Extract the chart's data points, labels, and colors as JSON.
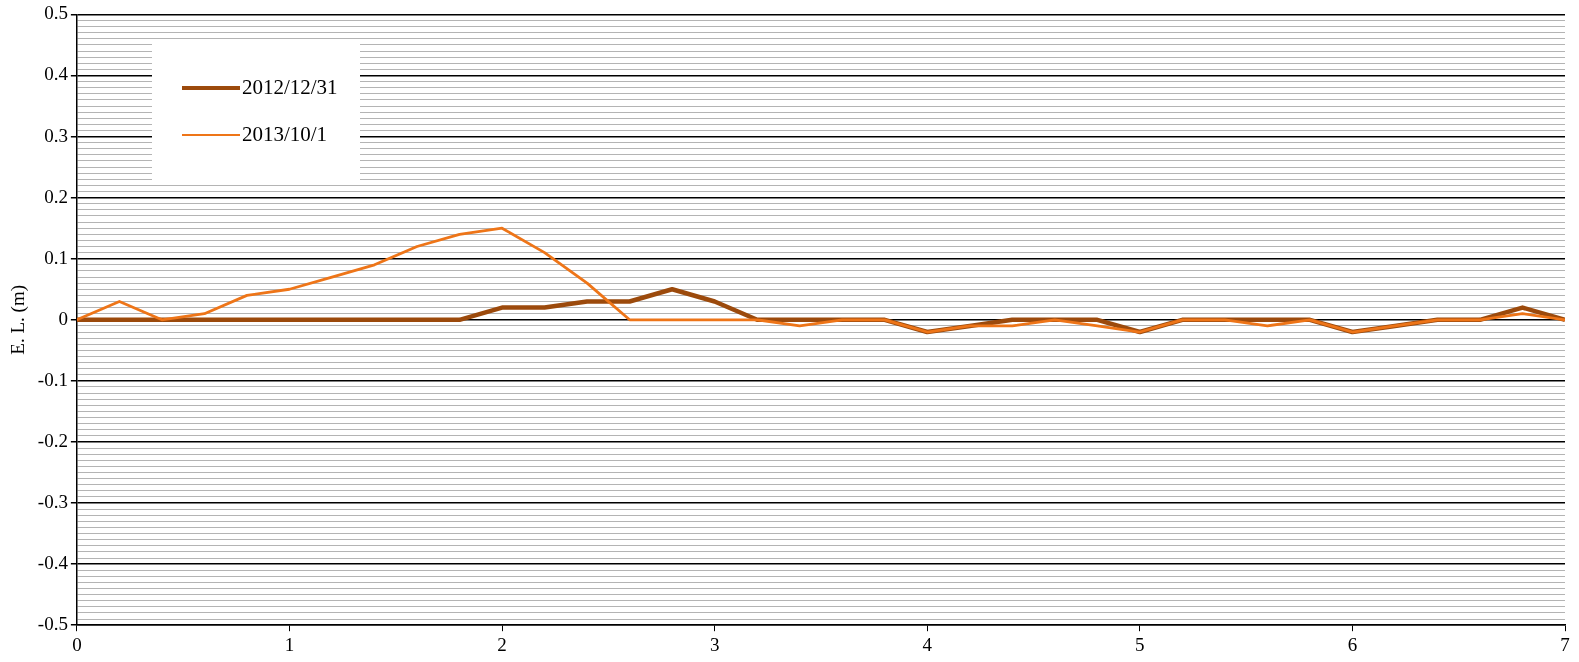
{
  "chart_data": {
    "type": "line",
    "ylabel": "E. L. (m)",
    "x": [
      0,
      0.2,
      0.4,
      0.6,
      0.8,
      1,
      1.2,
      1.4,
      1.6,
      1.8,
      2,
      2.2,
      2.4,
      2.6,
      2.8,
      3,
      3.2,
      3.4,
      3.6,
      3.8,
      4,
      4.2,
      4.4,
      4.6,
      4.8,
      5,
      5.2,
      5.4,
      5.6,
      5.8,
      6,
      6.2,
      6.4,
      6.6,
      6.8,
      7
    ],
    "series": [
      {
        "name": "2012/12/31",
        "color": "#9c4a0c",
        "values": [
          0,
          0,
          0,
          0,
          0,
          0,
          0,
          0,
          0,
          0,
          0.02,
          0.02,
          0.03,
          0.03,
          0.05,
          0.03,
          0,
          0,
          0,
          0,
          -0.02,
          -0.01,
          0,
          0,
          0,
          -0.02,
          0,
          0,
          0,
          0,
          -0.02,
          -0.01,
          0,
          0,
          0.02,
          0
        ]
      },
      {
        "name": "2013/10/1",
        "color": "#ee7518",
        "values": [
          0,
          0.03,
          0,
          0.01,
          0.04,
          0.05,
          0.07,
          0.09,
          0.12,
          0.14,
          0.15,
          0.11,
          0.06,
          0,
          0,
          0,
          0,
          -0.01,
          0,
          0,
          -0.02,
          -0.01,
          -0.01,
          0,
          -0.01,
          -0.02,
          0,
          0,
          -0.01,
          0,
          -0.02,
          -0.01,
          0,
          0,
          0.01,
          0
        ]
      }
    ],
    "xlim": [
      0,
      7
    ],
    "xticks": [
      0,
      1,
      2,
      3,
      4,
      5,
      6,
      7
    ],
    "ylim": [
      -0.5,
      0.5
    ],
    "yticks": [
      -0.5,
      {
        "value": -0.49,
        "label": null
      },
      {
        "value": -0.48,
        "label": null
      },
      {
        "value": -0.47,
        "label": null
      },
      {
        "value": -0.46,
        "label": null
      },
      {
        "value": -0.45,
        "label": null
      },
      {
        "value": -0.44,
        "label": null
      },
      {
        "value": -0.43,
        "label": null
      },
      {
        "value": -0.42,
        "label": null
      },
      {
        "value": -0.41,
        "label": null
      },
      -0.4,
      {
        "value": -0.39,
        "label": null
      },
      {
        "value": -0.38,
        "label": null
      },
      {
        "value": -0.37,
        "label": null
      },
      {
        "value": -0.36,
        "label": null
      },
      {
        "value": -0.35,
        "label": null
      },
      {
        "value": -0.34,
        "label": null
      },
      {
        "value": -0.33,
        "label": null
      },
      {
        "value": -0.32,
        "label": null
      },
      {
        "value": -0.31,
        "label": null
      },
      -0.3,
      {
        "value": -0.29,
        "label": null
      },
      {
        "value": -0.28,
        "label": null
      },
      {
        "value": -0.27,
        "label": null
      },
      {
        "value": -0.26,
        "label": null
      },
      {
        "value": -0.25,
        "label": null
      },
      {
        "value": -0.24,
        "label": null
      },
      {
        "value": -0.23,
        "label": null
      },
      {
        "value": -0.22,
        "label": null
      },
      {
        "value": -0.21,
        "label": null
      },
      -0.2,
      {
        "value": -0.19,
        "label": null
      },
      {
        "value": -0.18,
        "label": null
      },
      {
        "value": -0.17,
        "label": null
      },
      {
        "value": -0.16,
        "label": null
      },
      {
        "value": -0.15,
        "label": null
      },
      {
        "value": -0.14,
        "label": null
      },
      {
        "value": -0.13,
        "label": null
      },
      {
        "value": -0.12,
        "label": null
      },
      {
        "value": -0.11,
        "label": null
      },
      -0.1,
      {
        "value": -0.09,
        "label": null
      },
      {
        "value": -0.08,
        "label": null
      },
      {
        "value": -0.07,
        "label": null
      },
      {
        "value": -0.06,
        "label": null
      },
      {
        "value": -0.05,
        "label": null
      },
      {
        "value": -0.04,
        "label": null
      },
      {
        "value": -0.03,
        "label": null
      },
      {
        "value": -0.02,
        "label": null
      },
      {
        "value": -0.01,
        "label": null
      },
      0,
      {
        "value": 0.01,
        "label": null
      },
      {
        "value": 0.02,
        "label": null
      },
      {
        "value": 0.03,
        "label": null
      },
      {
        "value": 0.04,
        "label": null
      },
      {
        "value": 0.05,
        "label": null
      },
      {
        "value": 0.06,
        "label": null
      },
      {
        "value": 0.07,
        "label": null
      },
      {
        "value": 0.08,
        "label": null
      },
      {
        "value": 0.09,
        "label": null
      },
      0.1,
      {
        "value": 0.11,
        "label": null
      },
      {
        "value": 0.12,
        "label": null
      },
      {
        "value": 0.13,
        "label": null
      },
      {
        "value": 0.14,
        "label": null
      },
      {
        "value": 0.15,
        "label": null
      },
      {
        "value": 0.16,
        "label": null
      },
      {
        "value": 0.17,
        "label": null
      },
      {
        "value": 0.18,
        "label": null
      },
      {
        "value": 0.19,
        "label": null
      },
      0.2,
      {
        "value": 0.21,
        "label": null
      },
      {
        "value": 0.22,
        "label": null
      },
      {
        "value": 0.23,
        "label": null
      },
      {
        "value": 0.24,
        "label": null
      },
      {
        "value": 0.25,
        "label": null
      },
      {
        "value": 0.26,
        "label": null
      },
      {
        "value": 0.27,
        "label": null
      },
      {
        "value": 0.28,
        "label": null
      },
      {
        "value": 0.29,
        "label": null
      },
      0.3,
      {
        "value": 0.31,
        "label": null
      },
      {
        "value": 0.32,
        "label": null
      },
      {
        "value": 0.33,
        "label": null
      },
      {
        "value": 0.34,
        "label": null
      },
      {
        "value": 0.35,
        "label": null
      },
      {
        "value": 0.36,
        "label": null
      },
      {
        "value": 0.37,
        "label": null
      },
      {
        "value": 0.38,
        "label": null
      },
      {
        "value": 0.39,
        "label": null
      },
      0.4,
      {
        "value": 0.41,
        "label": null
      },
      {
        "value": 0.42,
        "label": null
      },
      {
        "value": 0.43,
        "label": null
      },
      {
        "value": 0.44,
        "label": null
      },
      {
        "value": 0.45,
        "label": null
      },
      {
        "value": 0.46,
        "label": null
      },
      {
        "value": 0.47,
        "label": null
      },
      {
        "value": 0.48,
        "label": null
      },
      {
        "value": 0.49,
        "label": null
      },
      0.5
    ],
    "grid": "y",
    "legend": "top left",
    "marker": "none",
    "line_style": "solid"
  }
}
